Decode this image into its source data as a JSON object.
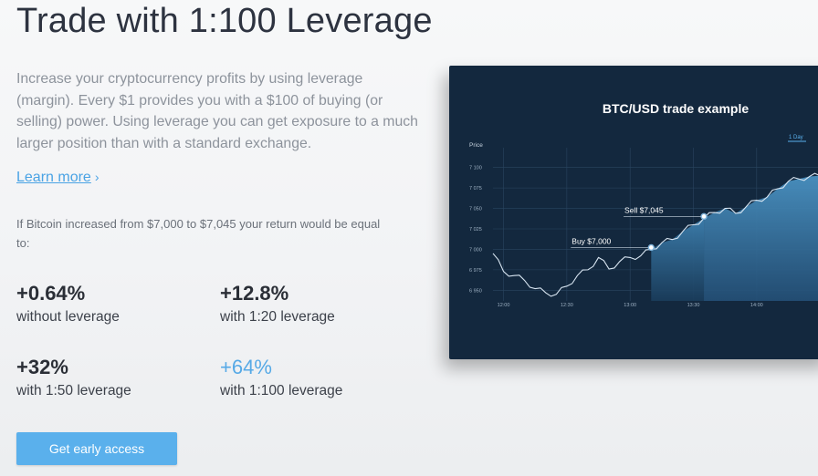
{
  "headline": "Trade with 1:100 Leverage",
  "intro": "Increase your cryptocurrency profits by using leverage (margin). Every $1 provides you with a $100 of buying (or selling) power. Using leverage you can get exposure to a much larger position than with a standard exchange.",
  "learn_more": {
    "label": "Learn more",
    "chevron": "›"
  },
  "example_text": "If Bitcoin increased from $7,000 to $7,045 your return would be equal to:",
  "stats": [
    {
      "value": "+0.64%",
      "label": "without leverage"
    },
    {
      "value": "+12.8%",
      "label": "with 1:20 leverage"
    },
    {
      "value": "+32%",
      "label": "with 1:50 leverage"
    },
    {
      "value": "+64%",
      "label": "with 1:100 leverage",
      "accent": true
    }
  ],
  "cta_label": "Get early access",
  "colors": {
    "accent": "#56a9e6",
    "button": "#5ab0ec",
    "chart_bg": "#13283e"
  },
  "chart_data": {
    "type": "line",
    "title": "BTC/USD trade example",
    "ylabel": "Price",
    "range_tab": "1 Day",
    "y_ticks": [
      "7 100",
      "7 075",
      "7 050",
      "7 025",
      "7 000",
      "6 975",
      "6 950"
    ],
    "x_ticks": [
      "12:00",
      "12:30",
      "13:00",
      "13:30",
      "14:00"
    ],
    "ylim": [
      6937,
      7113
    ],
    "xlim": [
      "11:55",
      "14:36"
    ],
    "annotations": [
      {
        "label": "Buy $7,000",
        "x": "13:10",
        "y": 7000
      },
      {
        "label": "Sell $7,045",
        "x": "13:35",
        "y": 7038
      }
    ],
    "series": [
      {
        "x": [
          "11:55",
          "12:00",
          "12:05",
          "12:10",
          "12:15",
          "12:20",
          "12:25",
          "12:30",
          "12:35",
          "12:40",
          "12:45",
          "12:50",
          "12:55",
          "13:00",
          "13:05",
          "13:10",
          "13:15",
          "13:20",
          "13:25",
          "13:30",
          "13:35",
          "13:40",
          "13:45",
          "13:50",
          "13:55",
          "14:00",
          "14:05",
          "14:10",
          "14:15",
          "14:20",
          "14:25",
          "14:30",
          "14:35"
        ],
        "y": [
          6995,
          6973,
          6968,
          6962,
          6952,
          6947,
          6945,
          6955,
          6968,
          6975,
          6990,
          6976,
          6985,
          6990,
          6992,
          7000,
          7008,
          7012,
          7022,
          7030,
          7038,
          7045,
          7050,
          7044,
          7052,
          7060,
          7064,
          7074,
          7083,
          7086,
          7089,
          7090,
          7092
        ]
      }
    ]
  }
}
